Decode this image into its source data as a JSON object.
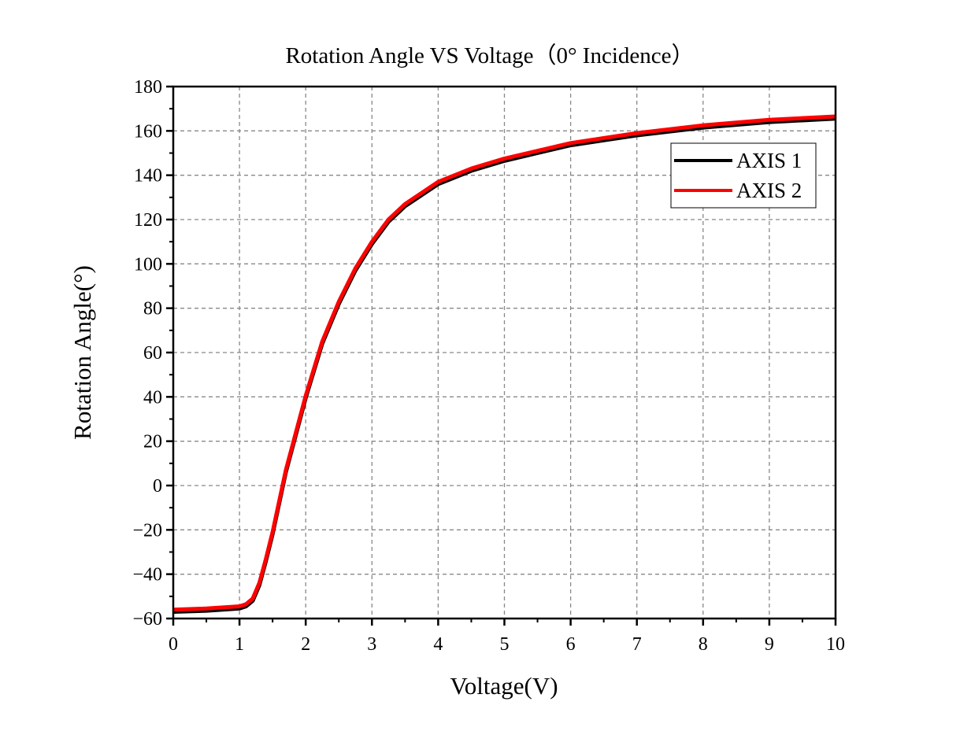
{
  "chart_data": {
    "type": "line",
    "title": "Rotation Angle  VS  Voltage（0° Incidence）",
    "xlabel": "Voltage(V)",
    "ylabel": "Rotation Angle(°)",
    "xlim": [
      0,
      10
    ],
    "ylim": [
      -60,
      180
    ],
    "xticks": [
      "0",
      "1",
      "2",
      "3",
      "4",
      "5",
      "6",
      "7",
      "8",
      "9",
      "10"
    ],
    "yticks": [
      "−60",
      "−40",
      "−20",
      "0",
      "20",
      "40",
      "60",
      "80",
      "100",
      "120",
      "140",
      "160",
      "180"
    ],
    "grid": true,
    "legend_position": "top-right",
    "x": [
      0,
      0.5,
      1.0,
      1.1,
      1.2,
      1.3,
      1.4,
      1.5,
      1.7,
      2.0,
      2.25,
      2.5,
      2.75,
      3.0,
      3.25,
      3.5,
      4.0,
      4.5,
      5.0,
      5.5,
      6.0,
      7.0,
      8.0,
      9.0,
      10.0
    ],
    "series": [
      {
        "name": "AXIS 1",
        "color": "#000000",
        "values": [
          -57,
          -56.5,
          -55.5,
          -54.5,
          -52,
          -45,
          -34,
          -22,
          6,
          39.5,
          64,
          82,
          97,
          109,
          119,
          126,
          136,
          142,
          146.5,
          150,
          153.5,
          158,
          161.5,
          164,
          165.5
        ]
      },
      {
        "name": "AXIS 2",
        "color": "#ff0000",
        "values": [
          -56,
          -55.5,
          -54.5,
          -53.5,
          -51,
          -44,
          -33,
          -21,
          7,
          40.5,
          65,
          83,
          98,
          110,
          120,
          127,
          137,
          143,
          147.5,
          151,
          154.5,
          159,
          162.5,
          165,
          166.5
        ]
      }
    ]
  }
}
